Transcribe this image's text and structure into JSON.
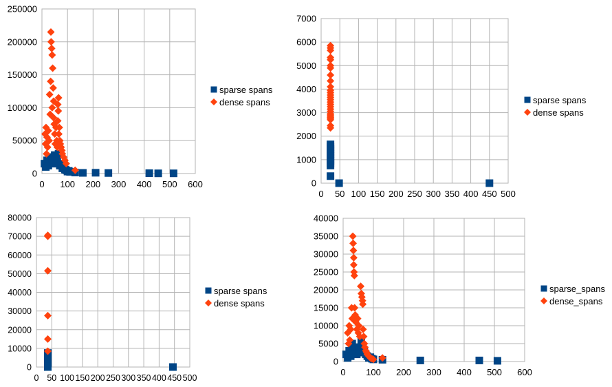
{
  "colors": {
    "sparse": "#004586",
    "dense": "#ff420e",
    "grid": "#b3b3b3"
  },
  "chart_data": [
    {
      "type": "scatter",
      "title": "",
      "xlabel": "",
      "ylabel": "",
      "xlim": [
        0,
        600
      ],
      "ylim": [
        0,
        250000
      ],
      "x_ticks": [
        "0",
        "100",
        "200",
        "300",
        "400",
        "500",
        "600"
      ],
      "y_ticks": [
        "0",
        "50000",
        "100000",
        "150000",
        "200000",
        "250000"
      ],
      "legend": [
        "sparse spans",
        "dense spans"
      ],
      "series": [
        {
          "name": "sparse spans",
          "x": [
            10,
            15,
            20,
            25,
            30,
            35,
            40,
            45,
            50,
            55,
            60,
            65,
            70,
            75,
            80,
            85,
            90,
            95,
            100,
            105,
            110,
            130,
            160,
            210,
            260,
            420,
            455,
            515
          ],
          "y": [
            15000,
            10000,
            20000,
            12000,
            25000,
            18000,
            22000,
            15000,
            28000,
            20000,
            25000,
            30000,
            12000,
            15000,
            8000,
            10000,
            6000,
            5000,
            3000,
            4000,
            2500,
            1500,
            1000,
            1200,
            800,
            500,
            300,
            300
          ]
        },
        {
          "name": "dense spans",
          "x": [
            12,
            14,
            16,
            18,
            20,
            22,
            25,
            28,
            30,
            32,
            34,
            35,
            36,
            38,
            40,
            40,
            42,
            44,
            45,
            46,
            48,
            50,
            52,
            55,
            58,
            60,
            62,
            62,
            64,
            65,
            66,
            68,
            70,
            72,
            75,
            78,
            80,
            85,
            90,
            95,
            130
          ],
          "y": [
            60000,
            45000,
            70000,
            30000,
            55000,
            40000,
            65000,
            50000,
            120000,
            90000,
            140000,
            215000,
            200000,
            190000,
            180000,
            100000,
            160000,
            130000,
            85000,
            110000,
            75000,
            60000,
            45000,
            70000,
            50000,
            40000,
            105000,
            80000,
            95000,
            115000,
            60000,
            70000,
            50000,
            45000,
            40000,
            35000,
            30000,
            25000,
            20000,
            15000,
            5000
          ]
        }
      ]
    },
    {
      "type": "scatter",
      "title": "",
      "xlabel": "",
      "ylabel": "",
      "xlim": [
        0,
        500
      ],
      "ylim": [
        0,
        7000
      ],
      "x_ticks": [
        "0",
        "50",
        "100",
        "150",
        "200",
        "250",
        "300",
        "350",
        "400",
        "450",
        "500"
      ],
      "y_ticks": [
        "0",
        "1000",
        "2000",
        "3000",
        "4000",
        "5000",
        "6000",
        "7000"
      ],
      "legend": [
        "sparse spans",
        "dense spans"
      ],
      "series": [
        {
          "name": "sparse spans",
          "x": [
            25,
            25,
            25,
            25,
            25,
            25,
            25,
            25,
            25,
            25,
            25,
            48,
            450
          ],
          "y": [
            1650,
            1550,
            1450,
            1350,
            1250,
            1150,
            1050,
            950,
            850,
            750,
            300,
            0,
            0
          ]
        },
        {
          "name": "dense spans",
          "x": [
            25,
            25,
            25,
            25,
            25,
            25,
            25,
            25,
            25,
            25,
            25,
            25,
            25,
            25,
            25,
            25,
            25,
            25,
            25,
            25,
            25,
            25,
            25,
            25,
            25,
            25,
            25,
            25
          ],
          "y": [
            5850,
            5750,
            5650,
            5350,
            5250,
            5000,
            4900,
            4600,
            4350,
            4100,
            3950,
            3850,
            3750,
            3650,
            3550,
            3450,
            3350,
            3250,
            3150,
            3050,
            2950,
            2900,
            2850,
            2800,
            2750,
            2700,
            2450,
            2350
          ]
        }
      ]
    },
    {
      "type": "scatter",
      "title": "",
      "xlabel": "",
      "ylabel": "",
      "xlim": [
        0,
        500
      ],
      "ylim": [
        0,
        80000
      ],
      "x_ticks": [
        "0",
        "50",
        "100",
        "150",
        "200",
        "250",
        "300",
        "350",
        "400",
        "450",
        "500"
      ],
      "y_ticks": [
        "0",
        "10000",
        "20000",
        "30000",
        "40000",
        "50000",
        "60000",
        "70000",
        "80000"
      ],
      "legend": [
        "sparse spans",
        "dense spans"
      ],
      "series": [
        {
          "name": "sparse spans",
          "x": [
            37,
            37,
            37,
            37,
            37,
            37,
            37,
            37,
            37,
            37,
            37,
            37,
            37,
            37,
            37,
            37,
            445
          ],
          "y": [
            7500,
            7000,
            6500,
            6000,
            5500,
            5000,
            4500,
            4000,
            3500,
            3000,
            2500,
            2000,
            1500,
            1000,
            500,
            0,
            0
          ]
        },
        {
          "name": "dense spans",
          "x": [
            37,
            37,
            37,
            37,
            37,
            37
          ],
          "y": [
            70500,
            70000,
            51500,
            27500,
            15000,
            8500
          ]
        }
      ]
    },
    {
      "type": "scatter",
      "title": "",
      "xlabel": "",
      "ylabel": "",
      "xlim": [
        0,
        600
      ],
      "ylim": [
        0,
        40000
      ],
      "x_ticks": [
        "0",
        "100",
        "200",
        "300",
        "400",
        "500",
        "600"
      ],
      "y_ticks": [
        "0",
        "5000",
        "10000",
        "15000",
        "20000",
        "25000",
        "30000",
        "35000",
        "40000"
      ],
      "legend": [
        "sparse_spans",
        "dense_spans"
      ],
      "series": [
        {
          "name": "sparse_spans",
          "x": [
            10,
            15,
            20,
            25,
            30,
            35,
            40,
            45,
            50,
            55,
            60,
            65,
            70,
            75,
            80,
            85,
            90,
            95,
            100,
            130,
            255,
            450,
            510
          ],
          "y": [
            2000,
            1000,
            3000,
            1500,
            5000,
            3000,
            4000,
            2000,
            2500,
            3500,
            5500,
            4000,
            3000,
            2000,
            1500,
            1000,
            1200,
            800,
            600,
            500,
            300,
            300,
            200
          ]
        },
        {
          "name": "dense_spans",
          "x": [
            15,
            18,
            20,
            22,
            25,
            28,
            30,
            32,
            33,
            34,
            35,
            35,
            36,
            37,
            38,
            40,
            42,
            45,
            48,
            50,
            52,
            55,
            58,
            60,
            62,
            64,
            65,
            66,
            68,
            70,
            72,
            75,
            78,
            80,
            85,
            90,
            95,
            100,
            130
          ],
          "y": [
            8000,
            5000,
            10000,
            6000,
            9000,
            15000,
            12000,
            35000,
            33000,
            31000,
            29000,
            27000,
            25000,
            24000,
            15000,
            13000,
            11000,
            9000,
            12000,
            8000,
            10000,
            7000,
            21000,
            19000,
            18000,
            17000,
            16000,
            9000,
            7000,
            5000,
            4000,
            3000,
            2500,
            2000,
            1500,
            1000,
            800,
            600,
            1000
          ]
        }
      ]
    }
  ]
}
